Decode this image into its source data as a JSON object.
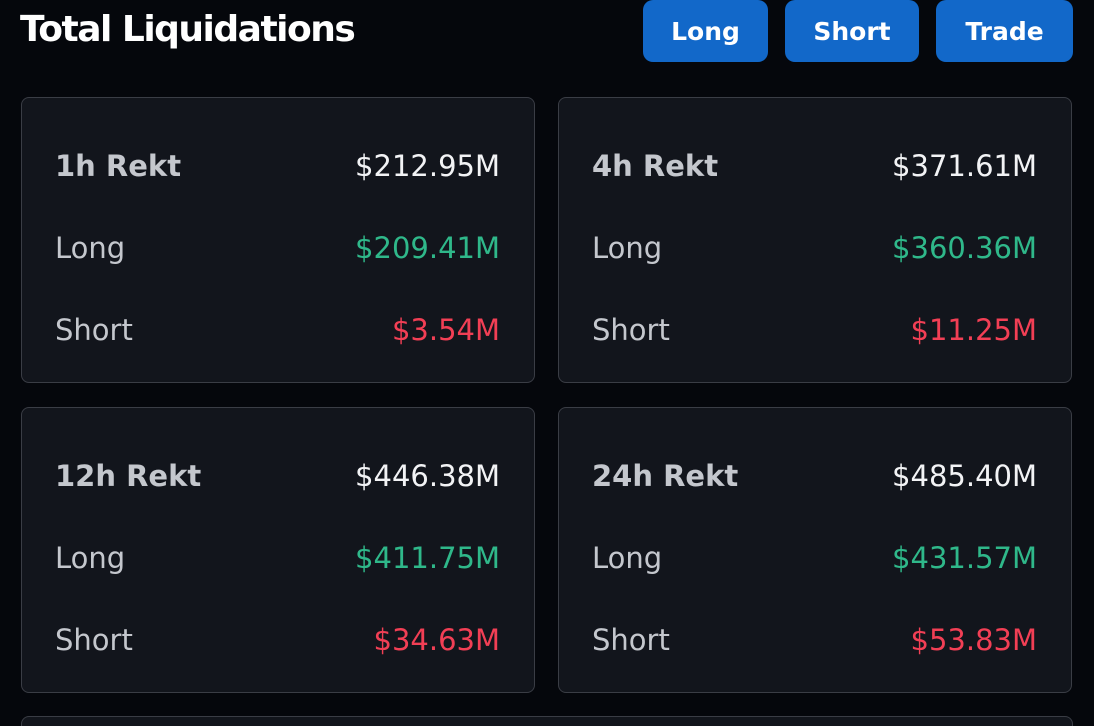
{
  "header": {
    "title": "Total Liquidations",
    "buttons": [
      "Long",
      "Short",
      "Trade"
    ]
  },
  "cards": [
    {
      "label": "1h Rekt",
      "total": "$212.95M",
      "rows": [
        {
          "label": "Long",
          "value": "$209.41M"
        },
        {
          "label": "Short",
          "value": "$3.54M"
        }
      ]
    },
    {
      "label": "4h Rekt",
      "total": "$371.61M",
      "rows": [
        {
          "label": "Long",
          "value": "$360.36M"
        },
        {
          "label": "Short",
          "value": "$11.25M"
        }
      ]
    },
    {
      "label": "12h Rekt",
      "total": "$446.38M",
      "rows": [
        {
          "label": "Long",
          "value": "$411.75M"
        },
        {
          "label": "Short",
          "value": "$34.63M"
        }
      ]
    },
    {
      "label": "24h Rekt",
      "total": "$485.40M",
      "rows": [
        {
          "label": "Long",
          "value": "$431.57M"
        },
        {
          "label": "Short",
          "value": "$53.83M"
        }
      ]
    }
  ]
}
